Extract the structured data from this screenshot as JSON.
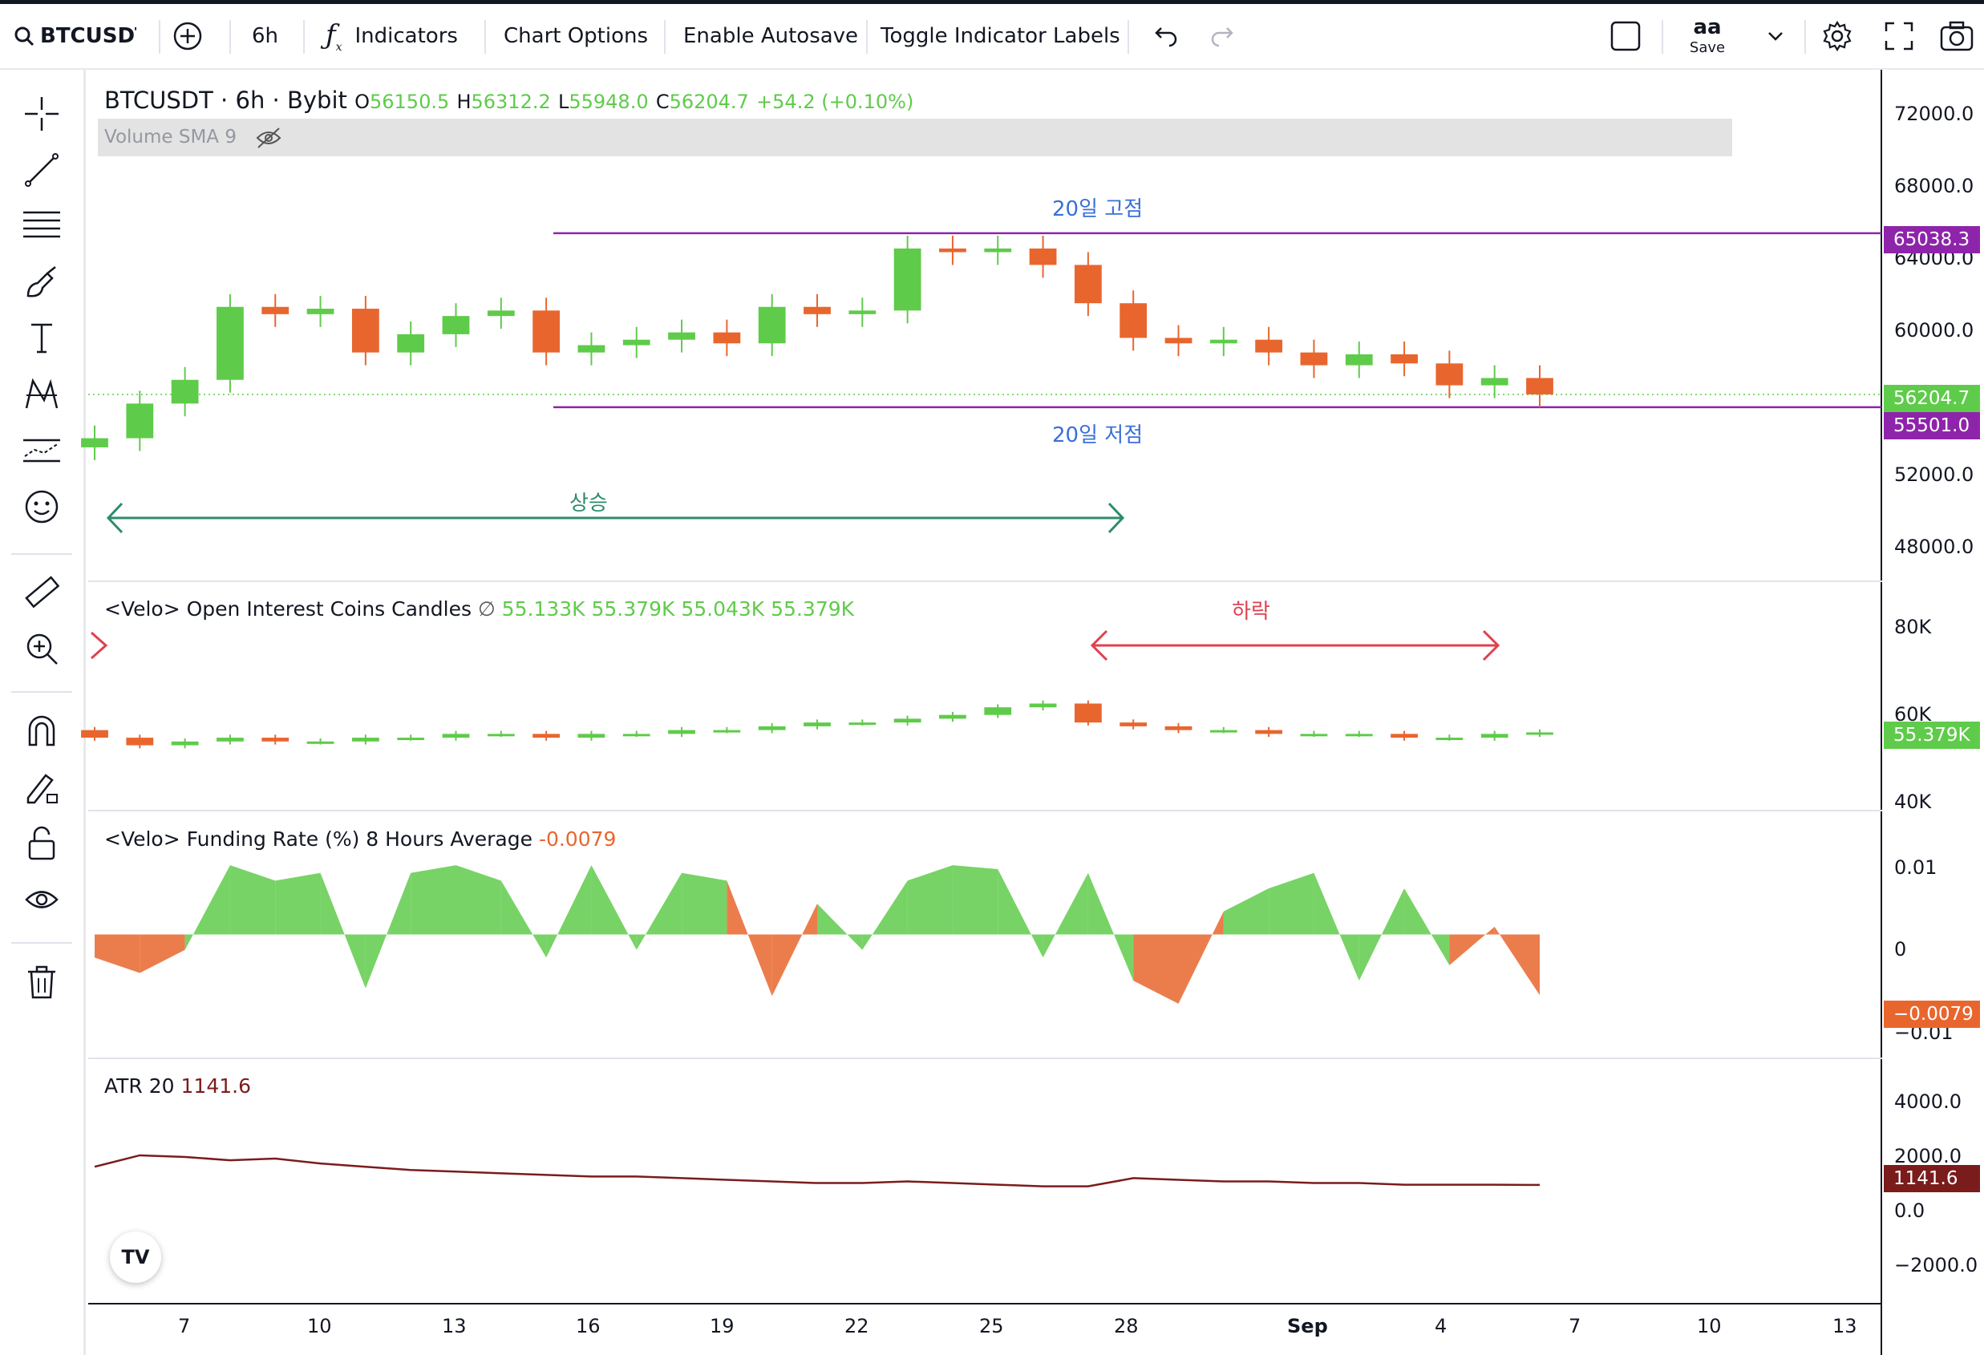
{
  "toolbar": {
    "symbol": "BTCUSDT",
    "interval": "6h",
    "indicators_label": "Indicators",
    "chart_options_label": "Chart Options",
    "autosave_label": "Enable Autosave",
    "toggle_labels_label": "Toggle Indicator Labels",
    "layout_name": "aa",
    "save_label": "Save"
  },
  "main_pane": {
    "title": "BTCUSDT · 6h · Bybit",
    "open_label": "O",
    "open": "56150.5",
    "high_label": "H",
    "high": "56312.2",
    "low_label": "L",
    "low": "55948.0",
    "close_label": "C",
    "close": "56204.7",
    "change": "+54.2 (+0.10%)",
    "volume_label": "Volume SMA 9",
    "annotations": {
      "high20": "20일 고점",
      "low20": "20일 저점",
      "rise": "상승",
      "fall": "하락"
    },
    "price_ticks": [
      "72000.0",
      "68000.0",
      "64000.0",
      "60000.0",
      "52000.0",
      "48000.0"
    ],
    "tags": {
      "high": "65038.3",
      "last": "56204.7",
      "low": "55501.0"
    }
  },
  "oi_pane": {
    "title": "<Velo> Open Interest Coins Candles",
    "values": [
      "55.133K",
      "55.379K",
      "55.043K",
      "55.379K"
    ],
    "ticks": [
      "80K",
      "60K",
      "40K"
    ],
    "tag": "55.379K"
  },
  "funding_pane": {
    "title": "<Velo> Funding Rate (%) 8 Hours Average",
    "value": "-0.0079",
    "ticks": [
      "0.01",
      "0",
      "−0.01"
    ],
    "tag": "−0.0079"
  },
  "atr_pane": {
    "title": "ATR 20",
    "value": "1141.6",
    "ticks": [
      "4000.0",
      "2000.0",
      "0.0",
      "−2000.0"
    ],
    "tag": "1141.6"
  },
  "time_axis": [
    "7",
    "10",
    "13",
    "16",
    "19",
    "22",
    "25",
    "28",
    "Sep",
    "4",
    "7",
    "10",
    "13"
  ],
  "colors": {
    "up": "#5fcb4a",
    "down": "#e8662e",
    "accent": "#8e24aa",
    "atr": "#7b1c1c",
    "rise": "#2e8b6e",
    "fall": "#e04050",
    "annot_blue": "#3a6fd8"
  },
  "chart_data": [
    {
      "type": "candlestick",
      "pane": "BTCUSDT 6h",
      "x": [
        "Aug 5",
        "Aug 6",
        "Aug 7",
        "Aug 8",
        "Aug 9",
        "Aug 10",
        "Aug 11",
        "Aug 12",
        "Aug 13",
        "Aug 14",
        "Aug 15",
        "Aug 16",
        "Aug 17",
        "Aug 18",
        "Aug 19",
        "Aug 20",
        "Aug 21",
        "Aug 22",
        "Aug 23",
        "Aug 24",
        "Aug 25",
        "Aug 26",
        "Aug 27",
        "Aug 28",
        "Aug 29",
        "Aug 30",
        "Aug 31",
        "Sep 1",
        "Sep 2",
        "Sep 3",
        "Sep 4",
        "Sep 5",
        "Sep 6"
      ],
      "close": [
        53800,
        55700,
        57000,
        61000,
        60600,
        60900,
        58500,
        59500,
        60500,
        60800,
        58500,
        58900,
        59200,
        59600,
        59000,
        61000,
        60600,
        60800,
        64200,
        64000,
        64200,
        63300,
        61200,
        59300,
        59000,
        59200,
        58500,
        57800,
        58400,
        57900,
        56700,
        57100,
        56200
      ],
      "ylim": [
        46000,
        74000
      ],
      "lines": [
        {
          "label": "20일 고점",
          "value": 65038.3
        },
        {
          "label": "20일 저점",
          "value": 55501.0
        }
      ],
      "annotations": [
        "상승",
        "하락"
      ]
    },
    {
      "type": "candlestick",
      "pane": "<Velo> Open Interest Coins Candles",
      "close_k": [
        54,
        52,
        53,
        54,
        53,
        53,
        54,
        54,
        55,
        55,
        54,
        55,
        55,
        56,
        56,
        57,
        58,
        58,
        59,
        60,
        62,
        63,
        58,
        57,
        56,
        56,
        55,
        55,
        55,
        54,
        54,
        55,
        55.4
      ],
      "ylim": [
        35,
        95
      ]
    },
    {
      "type": "area",
      "pane": "<Velo> Funding Rate (%) 8 Hours Average",
      "values": [
        -0.003,
        -0.005,
        -0.002,
        0.009,
        0.007,
        0.008,
        -0.007,
        0.008,
        0.009,
        0.007,
        -0.003,
        0.009,
        -0.002,
        0.008,
        0.007,
        -0.008,
        0.004,
        -0.002,
        0.007,
        0.009,
        0.0085,
        -0.003,
        0.008,
        -0.006,
        -0.009,
        0.003,
        0.006,
        0.008,
        -0.006,
        0.006,
        -0.004,
        0.001,
        -0.0079
      ],
      "ylim": [
        -0.016,
        0.016
      ]
    },
    {
      "type": "line",
      "pane": "ATR 20",
      "values": [
        1700,
        2050,
        2000,
        1900,
        1950,
        1800,
        1700,
        1600,
        1550,
        1500,
        1450,
        1400,
        1400,
        1350,
        1300,
        1250,
        1200,
        1200,
        1250,
        1200,
        1150,
        1100,
        1100,
        1350,
        1300,
        1250,
        1250,
        1200,
        1200,
        1150,
        1150,
        1150,
        1141.6
      ],
      "ylim": [
        -2500,
        5000
      ]
    }
  ]
}
